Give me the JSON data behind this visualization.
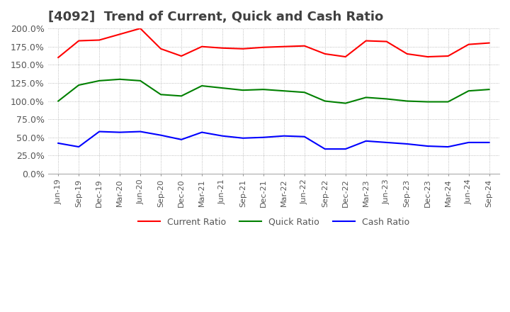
{
  "title": "[4092]  Trend of Current, Quick and Cash Ratio",
  "x_labels": [
    "Jun-19",
    "Sep-19",
    "Dec-19",
    "Mar-20",
    "Jun-20",
    "Sep-20",
    "Dec-20",
    "Mar-21",
    "Jun-21",
    "Sep-21",
    "Dec-21",
    "Mar-22",
    "Jun-22",
    "Sep-22",
    "Dec-22",
    "Mar-23",
    "Jun-23",
    "Sep-23",
    "Dec-23",
    "Mar-24",
    "Jun-24",
    "Sep-24"
  ],
  "current_ratio": [
    160,
    183,
    184,
    192,
    200,
    172,
    162,
    175,
    173,
    172,
    174,
    175,
    176,
    165,
    161,
    183,
    182,
    165,
    161,
    162,
    178,
    180
  ],
  "quick_ratio": [
    100,
    122,
    128,
    130,
    128,
    109,
    107,
    121,
    118,
    115,
    116,
    114,
    112,
    100,
    97,
    105,
    103,
    100,
    99,
    99,
    114,
    116
  ],
  "cash_ratio": [
    42,
    37,
    58,
    57,
    58,
    53,
    47,
    57,
    52,
    49,
    50,
    52,
    51,
    34,
    34,
    45,
    43,
    41,
    38,
    37,
    43,
    43
  ],
  "current_color": "#FF0000",
  "quick_color": "#008000",
  "cash_color": "#0000FF",
  "ylim": [
    0,
    200
  ],
  "yticks": [
    0,
    25,
    50,
    75,
    100,
    125,
    150,
    175,
    200
  ],
  "background_color": "#FFFFFF",
  "grid_color": "#AAAAAA",
  "title_fontsize": 13
}
